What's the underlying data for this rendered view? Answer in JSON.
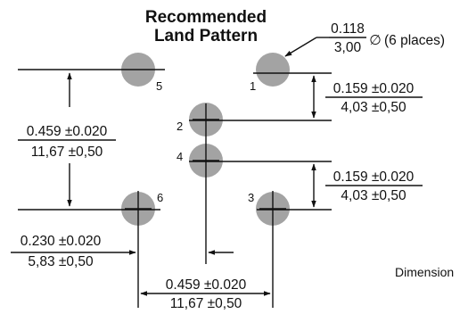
{
  "title": {
    "line1": "Recommended",
    "line2": "Land Pattern"
  },
  "pad_note": {
    "numerator": "0.118",
    "denominator": "3,00",
    "symbol": "∅",
    "suffix": "(6 places)"
  },
  "pins": {
    "p1": "1",
    "p2": "2",
    "p3": "3",
    "p4": "4",
    "p5": "5",
    "p6": "6"
  },
  "dims": {
    "right_top": {
      "imperial": "0.159 ±0.020",
      "metric": "4,03 ±0,50"
    },
    "right_bottom": {
      "imperial": "0.159 ±0.020",
      "metric": "4,03 ±0,50"
    },
    "left_vertical": {
      "imperial": "0.459 ±0.020",
      "metric": "11,67 ±0,50"
    },
    "left_offset": {
      "imperial": "0.230 ±0.020",
      "metric": "5,83 ±0,50"
    },
    "bottom_span": {
      "imperial": "0.459 ±0.020",
      "metric": "11,67 ±0,50"
    }
  },
  "footer_note": "Dimension",
  "colors": {
    "pad": "#a3a3a3",
    "line": "#111111"
  }
}
